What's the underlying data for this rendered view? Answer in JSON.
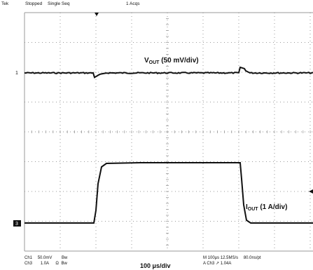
{
  "header": {
    "brand": "Tek",
    "state": "Stopped",
    "mode": "Single Seq",
    "acqs": "1 Acqs"
  },
  "markers": {
    "ch1": "1",
    "ch3": "3"
  },
  "labels": {
    "vout_main": "V",
    "vout_sub": "OUT",
    "vout_scale": " (50 mV/div)",
    "iout_main": "I",
    "iout_sub": "OUT",
    "iout_scale": " (1 A/div)",
    "timebase": "100 μs/div"
  },
  "readouts": {
    "ch1_name": "Ch1",
    "ch1_scale": "50.0mV",
    "ch1_bw": "Bw",
    "ch3_name": "Ch3",
    "ch3_scale": "1.0A",
    "ch3_ohm": "Ω",
    "ch3_bw": "Bw",
    "horiz": "M 100μs 12.5MS/s",
    "horiz_res": "80.0ns/pt",
    "trigger": "A Ch3 ↗ 1.04A"
  },
  "colors": {
    "trace": "#111111",
    "grid": "#9a9a9a",
    "background": "#ffffff"
  }
}
